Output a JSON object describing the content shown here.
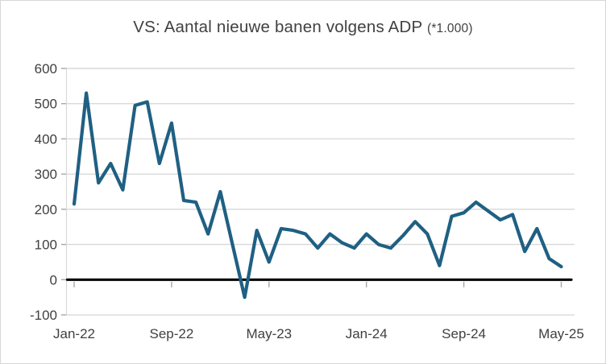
{
  "window": {
    "background": "#ffffff",
    "border_color": "#d7d7d7"
  },
  "chart": {
    "title": "VS: Aantal nieuwe banen volgens ADP",
    "title_suffix": "(*1.000)"
  },
  "chart_data": {
    "type": "line",
    "title": "VS: Aantal nieuwe banen volgens ADP (*1.000)",
    "xlabel": "",
    "ylabel": "",
    "x": [
      "Jan-22",
      "Feb-22",
      "Mar-22",
      "Apr-22",
      "May-22",
      "Jun-22",
      "Jul-22",
      "Aug-22",
      "Sep-22",
      "Oct-22",
      "Nov-22",
      "Dec-22",
      "Jan-23",
      "Feb-23",
      "Mar-23",
      "Apr-23",
      "May-23",
      "Jun-23",
      "Jul-23",
      "Aug-23",
      "Sep-23",
      "Oct-23",
      "Nov-23",
      "Dec-23",
      "Jan-24",
      "Feb-24",
      "Mar-24",
      "Apr-24",
      "May-24",
      "Jun-24",
      "Jul-24",
      "Aug-24",
      "Sep-24",
      "Oct-24",
      "Nov-24",
      "Dec-24",
      "Jan-25",
      "Feb-25",
      "Mar-25",
      "Apr-25",
      "May-25"
    ],
    "values": [
      215,
      530,
      275,
      330,
      255,
      495,
      505,
      330,
      445,
      225,
      220,
      130,
      250,
      100,
      -50,
      140,
      50,
      145,
      140,
      130,
      90,
      130,
      105,
      90,
      130,
      100,
      90,
      125,
      165,
      130,
      40,
      180,
      190,
      220,
      195,
      170,
      185,
      80,
      145,
      60,
      37
    ],
    "x_tick_labels": [
      "Jan-22",
      "Sep-22",
      "May-23",
      "Jan-24",
      "Sep-24",
      "May-25"
    ],
    "x_tick_indices": [
      0,
      8,
      16,
      24,
      32,
      40
    ],
    "y_ticks": [
      600,
      500,
      400,
      300,
      200,
      100,
      0,
      -100
    ],
    "ylim": [
      -100,
      600
    ],
    "grid": "horizontal",
    "legend": "none",
    "zero_line": true,
    "line_color": "#1F6083",
    "grid_color": "#D9D9D9",
    "zero_line_color": "#000000",
    "tick_color": "#A6A6A6",
    "label_color": "#404040"
  }
}
